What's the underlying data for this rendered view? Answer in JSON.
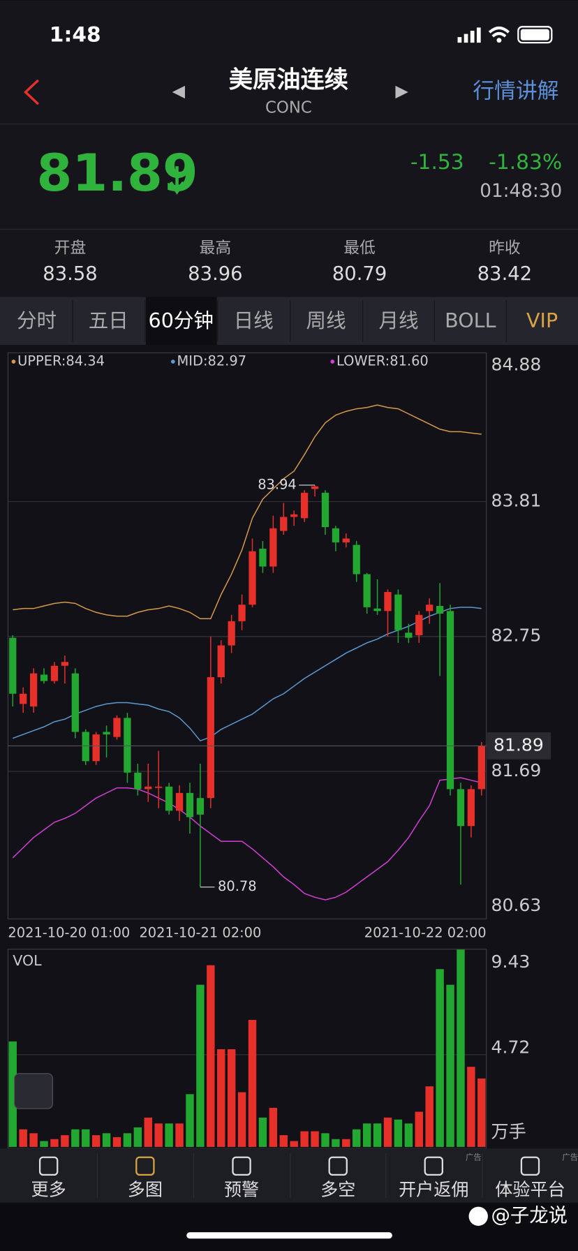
{
  "status_bar": {
    "time": "1:48"
  },
  "header": {
    "title": "美原油连续",
    "code": "CONC",
    "action": "行情讲解"
  },
  "quote": {
    "price": "81.89",
    "change": "-1.53",
    "change_pct": "-1.83%",
    "time": "01:48:30"
  },
  "stats": [
    {
      "label": "开盘",
      "value": "83.58"
    },
    {
      "label": "最高",
      "value": "83.96"
    },
    {
      "label": "最低",
      "value": "80.79"
    },
    {
      "label": "昨收",
      "value": "83.42"
    }
  ],
  "tabs": [
    "分时",
    "五日",
    "60分钟",
    "日线",
    "周线",
    "月线",
    "BOLL",
    "VIP"
  ],
  "chart_data": [
    {
      "type": "candlestick",
      "categories": [
        "2021-10-20 01:00",
        null,
        null,
        null,
        null,
        null,
        null,
        null,
        null,
        null,
        null,
        null,
        null,
        null,
        null,
        null,
        null,
        null,
        "2021-10-21 02:00",
        null,
        null,
        null,
        null,
        null,
        null,
        null,
        null,
        null,
        null,
        null,
        null,
        null,
        null,
        null,
        null,
        null,
        null,
        null,
        null,
        null,
        null,
        null,
        null,
        null,
        null,
        "2021-10-22 02:00"
      ],
      "open": [
        82.74,
        82.22,
        82.2,
        82.45,
        82.4,
        82.52,
        82.46,
        82.0,
        81.77,
        82.0,
        81.96,
        82.11,
        81.68,
        81.55,
        81.56,
        81.57,
        81.38,
        81.52,
        81.48,
        81.48,
        82.43,
        82.68,
        82.87,
        83.0,
        83.44,
        83.3,
        83.58,
        83.69,
        83.68,
        83.91,
        83.88,
        83.6,
        83.49,
        83.47,
        83.24,
        82.97,
        82.95,
        83.08,
        82.78,
        82.76,
        82.95,
        82.99,
        82.95,
        81.55,
        81.26,
        81.55
      ],
      "high": [
        82.76,
        82.35,
        82.5,
        82.5,
        82.55,
        82.6,
        82.5,
        82.02,
        82.0,
        82.05,
        82.13,
        82.15,
        81.75,
        81.75,
        81.85,
        81.6,
        81.58,
        81.6,
        81.75,
        82.75,
        82.72,
        82.92,
        83.08,
        83.52,
        83.5,
        83.7,
        83.8,
        83.74,
        83.9,
        83.94,
        83.9,
        83.62,
        83.56,
        83.5,
        83.25,
        83.2,
        83.12,
        83.12,
        82.85,
        82.95,
        83.05,
        83.17,
        83.0,
        81.6,
        81.58,
        81.92
      ],
      "low": [
        82.2,
        82.15,
        82.15,
        82.38,
        82.38,
        82.38,
        81.95,
        81.74,
        81.74,
        81.8,
        81.94,
        81.6,
        81.5,
        81.45,
        81.4,
        81.35,
        81.3,
        81.2,
        80.78,
        81.4,
        82.38,
        82.62,
        82.8,
        82.98,
        83.25,
        83.25,
        83.55,
        83.62,
        83.65,
        83.85,
        83.55,
        83.42,
        83.45,
        83.18,
        82.93,
        82.92,
        82.75,
        82.7,
        82.7,
        82.7,
        82.85,
        82.44,
        81.5,
        80.8,
        81.17,
        81.5
      ],
      "close": [
        82.3,
        82.3,
        82.46,
        82.4,
        82.52,
        82.55,
        82.0,
        81.77,
        81.98,
        81.98,
        82.11,
        81.68,
        81.55,
        81.57,
        81.57,
        81.38,
        81.52,
        81.33,
        81.35,
        82.43,
        82.68,
        82.87,
        83.0,
        83.42,
        83.3,
        83.6,
        83.69,
        83.71,
        83.88,
        83.93,
        83.61,
        83.49,
        83.52,
        83.24,
        82.98,
        82.95,
        83.1,
        82.8,
        82.74,
        82.92,
        83.0,
        82.93,
        81.55,
        81.26,
        81.55,
        81.89
      ],
      "up_color": "#e8302b",
      "down_color": "#22a730",
      "series": [
        {
          "name": "UPPER:84.34",
          "color": "#d79a4a",
          "values": [
            82.96,
            82.97,
            82.97,
            82.99,
            83.01,
            83.02,
            83.01,
            82.97,
            82.94,
            82.92,
            82.91,
            82.91,
            82.94,
            82.96,
            82.97,
            82.99,
            82.97,
            82.94,
            82.89,
            82.89,
            83.08,
            83.24,
            83.43,
            83.68,
            83.83,
            83.91,
            83.99,
            84.05,
            84.18,
            84.32,
            84.43,
            84.49,
            84.52,
            84.54,
            84.55,
            84.57,
            84.55,
            84.54,
            84.5,
            84.46,
            84.42,
            84.38,
            84.36,
            84.36,
            84.35,
            84.34
          ]
        },
        {
          "name": "MID:82.97",
          "color": "#5b9bd5",
          "values": [
            81.95,
            81.98,
            82.01,
            82.04,
            82.08,
            82.1,
            82.14,
            82.17,
            82.2,
            82.22,
            82.23,
            82.23,
            82.22,
            82.21,
            82.18,
            82.16,
            82.11,
            82.03,
            81.93,
            81.96,
            82.02,
            82.06,
            82.1,
            82.14,
            82.2,
            82.26,
            82.3,
            82.36,
            82.42,
            82.47,
            82.52,
            82.57,
            82.62,
            82.66,
            82.7,
            82.73,
            82.77,
            82.8,
            82.83,
            82.87,
            82.91,
            82.94,
            82.97,
            82.98,
            82.98,
            82.97
          ]
        },
        {
          "name": "LOWER:81.60",
          "color": "#d63fd6",
          "values": [
            81.01,
            81.09,
            81.17,
            81.23,
            81.29,
            81.32,
            81.36,
            81.42,
            81.48,
            81.52,
            81.56,
            81.56,
            81.55,
            81.52,
            81.48,
            81.44,
            81.39,
            81.33,
            81.26,
            81.2,
            81.14,
            81.14,
            81.14,
            81.08,
            81.01,
            80.94,
            80.86,
            80.8,
            80.73,
            80.7,
            80.68,
            80.7,
            80.74,
            80.8,
            80.86,
            80.92,
            80.98,
            81.07,
            81.17,
            81.3,
            81.42,
            81.62,
            81.63,
            81.64,
            81.62,
            81.6
          ]
        }
      ],
      "annotations": {
        "high": 83.94,
        "low": 80.78,
        "last": 81.89
      },
      "ylim": [
        80.53,
        84.98
      ],
      "yticks": [
        84.88,
        83.81,
        82.75,
        81.69,
        80.63
      ],
      "grid": true
    },
    {
      "type": "bar",
      "title": "VOL",
      "unit": "万手",
      "values": [
        5.4,
        0.9,
        0.7,
        0.3,
        0.4,
        0.6,
        0.9,
        0.9,
        0.6,
        0.7,
        0.5,
        0.7,
        1.0,
        1.5,
        1.2,
        1.2,
        1.2,
        2.7,
        8.3,
        9.3,
        5.0,
        5.0,
        2.8,
        6.5,
        1.5,
        2.0,
        0.6,
        0.3,
        0.8,
        0.8,
        0.7,
        0.4,
        0.4,
        0.9,
        1.2,
        1.2,
        1.5,
        1.4,
        1.2,
        1.8,
        3.1,
        9.1,
        8.3,
        10.1,
        4.1,
        3.5
      ],
      "up_color": "#e8302b",
      "down_color": "#22a730",
      "ylim": [
        0,
        10.12
      ],
      "yticks": [
        9.43,
        4.72
      ],
      "grid": true
    }
  ],
  "nav": [
    {
      "label": "更多"
    },
    {
      "label": "多图"
    },
    {
      "label": "预警"
    },
    {
      "label": "多空"
    },
    {
      "label": "开户返佣",
      "ad": "广告"
    },
    {
      "label": "体验平台",
      "ad": "广告"
    }
  ],
  "watermark": "@子龙说"
}
